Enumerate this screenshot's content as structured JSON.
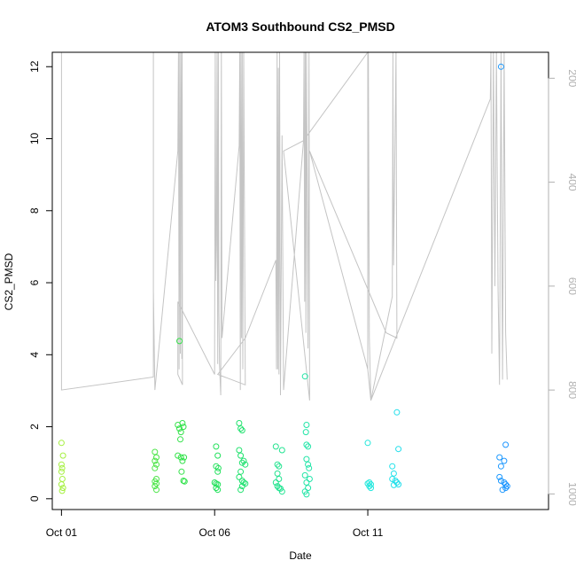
{
  "chart_data": {
    "type": "scatter",
    "title": "ATOM3 Southbound CS2_PMSD",
    "xlabel": "Date",
    "ylabel": "CS2_PMSD",
    "x_ticks": [
      {
        "label": "Oct 01",
        "value": 1
      },
      {
        "label": "Oct 06",
        "value": 6
      },
      {
        "label": "Oct 11",
        "value": 11
      }
    ],
    "y_ticks": [
      0,
      2,
      4,
      6,
      8,
      10,
      12
    ],
    "y2_ticks": [
      200,
      400,
      600,
      800,
      1000
    ],
    "xlim": [
      0.7,
      16.9
    ],
    "ylim": [
      -0.3,
      12.4
    ],
    "y2lim": [
      1030,
      150
    ],
    "colors": {
      "line": "#c4c4c4",
      "axis": "#000000",
      "right_axis": "#b0b0b0",
      "color_start": "#a6f040",
      "color_mid": "#22e04c",
      "color_late": "#22e8e8",
      "color_end": "#1e96ff"
    },
    "points": [
      {
        "x": 1.0,
        "y": 1.55
      },
      {
        "x": 1.05,
        "y": 1.2
      },
      {
        "x": 1.0,
        "y": 0.95
      },
      {
        "x": 1.02,
        "y": 0.85
      },
      {
        "x": 1.0,
        "y": 0.75
      },
      {
        "x": 1.03,
        "y": 0.55
      },
      {
        "x": 1.0,
        "y": 0.4
      },
      {
        "x": 1.05,
        "y": 0.3
      },
      {
        "x": 1.02,
        "y": 0.22
      },
      {
        "x": 4.05,
        "y": 1.3
      },
      {
        "x": 4.1,
        "y": 1.15
      },
      {
        "x": 4.05,
        "y": 1.05
      },
      {
        "x": 4.1,
        "y": 0.95
      },
      {
        "x": 4.05,
        "y": 0.85
      },
      {
        "x": 4.1,
        "y": 0.55
      },
      {
        "x": 4.05,
        "y": 0.48
      },
      {
        "x": 4.1,
        "y": 0.42
      },
      {
        "x": 4.05,
        "y": 0.35
      },
      {
        "x": 4.1,
        "y": 0.25
      },
      {
        "x": 4.8,
        "y": 2.05
      },
      {
        "x": 4.85,
        "y": 1.95
      },
      {
        "x": 4.95,
        "y": 2.1
      },
      {
        "x": 4.98,
        "y": 2.0
      },
      {
        "x": 4.9,
        "y": 1.85
      },
      {
        "x": 4.88,
        "y": 1.65
      },
      {
        "x": 4.8,
        "y": 1.2
      },
      {
        "x": 4.9,
        "y": 1.15
      },
      {
        "x": 4.95,
        "y": 1.05
      },
      {
        "x": 5.0,
        "y": 1.15
      },
      {
        "x": 4.92,
        "y": 0.75
      },
      {
        "x": 4.98,
        "y": 0.5
      },
      {
        "x": 5.02,
        "y": 0.48
      },
      {
        "x": 4.85,
        "y": 4.38
      },
      {
        "x": 6.05,
        "y": 1.45
      },
      {
        "x": 6.1,
        "y": 1.2
      },
      {
        "x": 6.05,
        "y": 0.9
      },
      {
        "x": 6.12,
        "y": 0.85
      },
      {
        "x": 6.1,
        "y": 0.75
      },
      {
        "x": 6.0,
        "y": 0.45
      },
      {
        "x": 6.05,
        "y": 0.42
      },
      {
        "x": 6.1,
        "y": 0.4
      },
      {
        "x": 6.05,
        "y": 0.3
      },
      {
        "x": 6.1,
        "y": 0.25
      },
      {
        "x": 6.8,
        "y": 2.1
      },
      {
        "x": 6.85,
        "y": 1.95
      },
      {
        "x": 6.9,
        "y": 1.9
      },
      {
        "x": 6.8,
        "y": 1.35
      },
      {
        "x": 6.85,
        "y": 1.2
      },
      {
        "x": 6.9,
        "y": 1.0
      },
      {
        "x": 6.95,
        "y": 1.05
      },
      {
        "x": 7.0,
        "y": 0.95
      },
      {
        "x": 6.85,
        "y": 0.75
      },
      {
        "x": 6.8,
        "y": 0.6
      },
      {
        "x": 6.9,
        "y": 0.5
      },
      {
        "x": 6.95,
        "y": 0.45
      },
      {
        "x": 7.0,
        "y": 0.42
      },
      {
        "x": 6.9,
        "y": 0.35
      },
      {
        "x": 6.85,
        "y": 0.25
      },
      {
        "x": 8.0,
        "y": 1.45
      },
      {
        "x": 8.05,
        "y": 0.95
      },
      {
        "x": 8.1,
        "y": 0.9
      },
      {
        "x": 8.2,
        "y": 1.35
      },
      {
        "x": 8.05,
        "y": 0.7
      },
      {
        "x": 8.1,
        "y": 0.55
      },
      {
        "x": 8.0,
        "y": 0.45
      },
      {
        "x": 8.05,
        "y": 0.35
      },
      {
        "x": 8.1,
        "y": 0.3
      },
      {
        "x": 8.15,
        "y": 0.28
      },
      {
        "x": 8.2,
        "y": 0.2
      },
      {
        "x": 8.95,
        "y": 3.4
      },
      {
        "x": 9.0,
        "y": 2.05
      },
      {
        "x": 8.98,
        "y": 1.85
      },
      {
        "x": 9.0,
        "y": 1.5
      },
      {
        "x": 9.05,
        "y": 1.45
      },
      {
        "x": 9.0,
        "y": 1.1
      },
      {
        "x": 9.05,
        "y": 0.95
      },
      {
        "x": 9.08,
        "y": 0.85
      },
      {
        "x": 8.95,
        "y": 0.65
      },
      {
        "x": 9.1,
        "y": 0.55
      },
      {
        "x": 9.0,
        "y": 0.45
      },
      {
        "x": 9.05,
        "y": 0.3
      },
      {
        "x": 8.95,
        "y": 0.2
      },
      {
        "x": 9.0,
        "y": 0.12
      },
      {
        "x": 11.0,
        "y": 1.55
      },
      {
        "x": 11.05,
        "y": 0.45
      },
      {
        "x": 11.0,
        "y": 0.42
      },
      {
        "x": 11.1,
        "y": 0.4
      },
      {
        "x": 11.05,
        "y": 0.35
      },
      {
        "x": 11.1,
        "y": 0.3
      },
      {
        "x": 11.8,
        "y": 0.9
      },
      {
        "x": 11.85,
        "y": 0.7
      },
      {
        "x": 11.8,
        "y": 0.55
      },
      {
        "x": 11.9,
        "y": 0.5
      },
      {
        "x": 11.95,
        "y": 0.45
      },
      {
        "x": 12.0,
        "y": 0.4
      },
      {
        "x": 11.85,
        "y": 0.38
      },
      {
        "x": 11.95,
        "y": 2.4
      },
      {
        "x": 12.0,
        "y": 1.38
      },
      {
        "x": 15.35,
        "y": 12.0
      },
      {
        "x": 15.3,
        "y": 1.15
      },
      {
        "x": 15.45,
        "y": 1.05
      },
      {
        "x": 15.35,
        "y": 0.9
      },
      {
        "x": 15.3,
        "y": 0.6
      },
      {
        "x": 15.35,
        "y": 0.5
      },
      {
        "x": 15.45,
        "y": 0.45
      },
      {
        "x": 15.5,
        "y": 0.4
      },
      {
        "x": 15.55,
        "y": 0.35
      },
      {
        "x": 15.5,
        "y": 0.3
      },
      {
        "x": 15.4,
        "y": 0.25
      },
      {
        "x": 15.5,
        "y": 1.5
      }
    ],
    "line_y2": [
      {
        "x": 1.0,
        "y2": 150
      },
      {
        "x": 1.0,
        "y2": 800
      },
      {
        "x": 4.0,
        "y2": 775
      },
      {
        "x": 4.0,
        "y2": 150
      },
      {
        "x": 4.0,
        "y2": 610
      },
      {
        "x": 4.05,
        "y2": 800
      },
      {
        "x": 4.8,
        "y2": 340
      },
      {
        "x": 4.82,
        "y2": 150
      },
      {
        "x": 4.84,
        "y2": 760
      },
      {
        "x": 4.86,
        "y2": 150
      },
      {
        "x": 4.88,
        "y2": 730
      },
      {
        "x": 4.9,
        "y2": 150
      },
      {
        "x": 4.92,
        "y2": 320
      },
      {
        "x": 4.93,
        "y2": 740
      },
      {
        "x": 4.94,
        "y2": 150
      },
      {
        "x": 4.95,
        "y2": 790
      },
      {
        "x": 4.8,
        "y2": 770
      },
      {
        "x": 4.8,
        "y2": 630
      },
      {
        "x": 6.0,
        "y2": 770
      },
      {
        "x": 6.0,
        "y2": 720
      },
      {
        "x": 6.02,
        "y2": 150
      },
      {
        "x": 6.04,
        "y2": 590
      },
      {
        "x": 6.06,
        "y2": 520
      },
      {
        "x": 6.08,
        "y2": 150
      },
      {
        "x": 6.1,
        "y2": 750
      },
      {
        "x": 6.12,
        "y2": 150
      },
      {
        "x": 6.14,
        "y2": 650
      },
      {
        "x": 6.16,
        "y2": 750
      },
      {
        "x": 6.2,
        "y2": 810
      },
      {
        "x": 6.22,
        "y2": 150
      },
      {
        "x": 6.24,
        "y2": 700
      },
      {
        "x": 6.8,
        "y2": 330
      },
      {
        "x": 6.82,
        "y2": 150
      },
      {
        "x": 6.84,
        "y2": 800
      },
      {
        "x": 6.86,
        "y2": 150
      },
      {
        "x": 6.88,
        "y2": 700
      },
      {
        "x": 6.9,
        "y2": 150
      },
      {
        "x": 6.92,
        "y2": 760
      },
      {
        "x": 6.95,
        "y2": 150
      },
      {
        "x": 7.0,
        "y2": 790
      },
      {
        "x": 6.1,
        "y2": 770
      },
      {
        "x": 7.0,
        "y2": 700
      },
      {
        "x": 8.0,
        "y2": 550
      },
      {
        "x": 8.02,
        "y2": 760
      },
      {
        "x": 8.04,
        "y2": 150
      },
      {
        "x": 8.06,
        "y2": 760
      },
      {
        "x": 8.08,
        "y2": 180
      },
      {
        "x": 8.1,
        "y2": 770
      },
      {
        "x": 8.12,
        "y2": 150
      },
      {
        "x": 8.15,
        "y2": 810
      },
      {
        "x": 8.2,
        "y2": 310
      },
      {
        "x": 8.25,
        "y2": 800
      },
      {
        "x": 8.9,
        "y2": 320
      },
      {
        "x": 8.92,
        "y2": 150
      },
      {
        "x": 8.94,
        "y2": 630
      },
      {
        "x": 8.96,
        "y2": 150
      },
      {
        "x": 8.98,
        "y2": 690
      },
      {
        "x": 9.0,
        "y2": 150
      },
      {
        "x": 9.05,
        "y2": 720
      },
      {
        "x": 9.08,
        "y2": 150
      },
      {
        "x": 9.1,
        "y2": 820
      },
      {
        "x": 8.25,
        "y2": 340
      },
      {
        "x": 8.9,
        "y2": 320
      },
      {
        "x": 11.0,
        "y2": 150
      },
      {
        "x": 11.0,
        "y2": 760
      },
      {
        "x": 11.02,
        "y2": 150
      },
      {
        "x": 11.05,
        "y2": 700
      },
      {
        "x": 11.1,
        "y2": 820
      },
      {
        "x": 11.8,
        "y2": 620
      },
      {
        "x": 11.82,
        "y2": 150
      },
      {
        "x": 11.84,
        "y2": 560
      },
      {
        "x": 11.9,
        "y2": 260
      },
      {
        "x": 11.92,
        "y2": 150
      },
      {
        "x": 11.95,
        "y2": 700
      },
      {
        "x": 11.6,
        "y2": 690
      },
      {
        "x": 9.1,
        "y2": 340
      },
      {
        "x": 11.0,
        "y2": 760
      },
      {
        "x": 11.1,
        "y2": 820
      },
      {
        "x": 15.0,
        "y2": 240
      },
      {
        "x": 15.02,
        "y2": 150
      },
      {
        "x": 15.05,
        "y2": 730
      },
      {
        "x": 15.1,
        "y2": 150
      },
      {
        "x": 15.15,
        "y2": 600
      },
      {
        "x": 15.2,
        "y2": 150
      },
      {
        "x": 15.25,
        "y2": 600
      },
      {
        "x": 15.3,
        "y2": 790
      },
      {
        "x": 15.35,
        "y2": 150
      },
      {
        "x": 15.4,
        "y2": 780
      },
      {
        "x": 15.45,
        "y2": 150
      },
      {
        "x": 15.5,
        "y2": 690
      },
      {
        "x": 15.55,
        "y2": 780
      }
    ]
  }
}
